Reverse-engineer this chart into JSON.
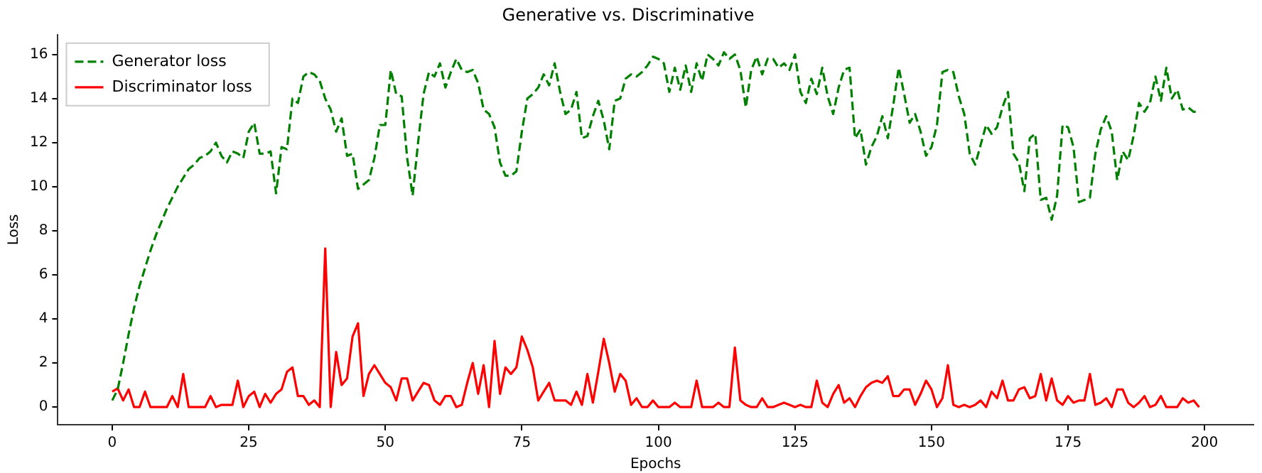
{
  "chart_data": {
    "type": "line",
    "title": "Generative vs. Discriminative",
    "xlabel": "Epochs",
    "ylabel": "Loss",
    "xlim": [
      -9.95,
      208.95
    ],
    "xticks": [
      0,
      25,
      50,
      75,
      100,
      125,
      150,
      175,
      200
    ],
    "ylim": [
      -0.8,
      16.9
    ],
    "yticks": [
      0,
      2,
      4,
      6,
      8,
      10,
      12,
      14,
      16
    ],
    "grid": false,
    "legend": "top left",
    "marker": "none",
    "series": [
      {
        "name": "Generator loss",
        "color": "#008000",
        "line_style": "dashed",
        "values": [
          0.3,
          0.8,
          2,
          3.3,
          4.5,
          5.5,
          6.3,
          7.1,
          7.8,
          8.4,
          9,
          9.5,
          10,
          10.4,
          10.8,
          11,
          11.3,
          11.4,
          11.6,
          12.0,
          11.4,
          11.1,
          11.6,
          11.5,
          11.3,
          12.5,
          12.9,
          11.5,
          11.5,
          11.6,
          9.7,
          11.8,
          11.7,
          14,
          13.8,
          15,
          15.2,
          15.1,
          14.8,
          14,
          13.5,
          12.5,
          13.1,
          11.4,
          11.5,
          9.9,
          10.1,
          10.3,
          11.3,
          12.8,
          12.8,
          15.3,
          14.2,
          14.1,
          11.3,
          9.6,
          12,
          14.2,
          15.2,
          15,
          15.6,
          14.5,
          15.2,
          15.8,
          15.3,
          15.2,
          15.3,
          14.7,
          13.5,
          13.3,
          12.7,
          11.1,
          10.5,
          10.5,
          10.7,
          12.5,
          14,
          14.2,
          14.5,
          15.1,
          14.6,
          15.6,
          14.3,
          13.3,
          13.5,
          14.3,
          12.2,
          12.3,
          13.2,
          13.9,
          13,
          11.7,
          13.9,
          14,
          14.9,
          15.1,
          15,
          15.2,
          15.5,
          15.9,
          15.8,
          15.6,
          14.3,
          15.4,
          14.4,
          15.5,
          14.3,
          15.6,
          14.8,
          16.0,
          15.8,
          15.5,
          16.1,
          15.8,
          16,
          15.3,
          13.6,
          15.3,
          15.9,
          15.1,
          15.8,
          15.8,
          15.4,
          15.6,
          15.3,
          16,
          14.3,
          13.8,
          14.9,
          14.2,
          15.4,
          14.1,
          13.3,
          14.5,
          15.3,
          15.4,
          12.2,
          12.6,
          11,
          11.8,
          12.3,
          13.2,
          12.2,
          13.7,
          15.4,
          14.2,
          12.9,
          13.3,
          12.5,
          11.4,
          11.8,
          12.8,
          15.2,
          15.3,
          15.2,
          14.1,
          13.3,
          11.5,
          11,
          11.9,
          12.8,
          12.4,
          12.7,
          13.6,
          14.3,
          11.5,
          11.1,
          9.8,
          12.2,
          12.4,
          9.4,
          9.5,
          8.5,
          9.6,
          12.8,
          12.7,
          11.8,
          9.3,
          9.4,
          9.5,
          11.5,
          12.6,
          13.2,
          12.5,
          10.3,
          11.6,
          11.2,
          12.3,
          13.8,
          13.4,
          13.8,
          15,
          13.9,
          15.4,
          14,
          14.4,
          13.5,
          13.6,
          13.4,
          13.4
        ]
      },
      {
        "name": "Discriminator loss",
        "color": "#ff0000",
        "line_style": "solid",
        "values": [
          0.7,
          0.85,
          0.3,
          0.8,
          0,
          0,
          0.7,
          0,
          0,
          0,
          0,
          0.5,
          0,
          1.5,
          0,
          0,
          0,
          0,
          0.5,
          0,
          0.1,
          0.1,
          0.1,
          1.2,
          0,
          0.5,
          0.7,
          0,
          0.6,
          0.2,
          0.6,
          0.8,
          1.6,
          1.8,
          0.5,
          0.5,
          0.1,
          0.3,
          0,
          7.2,
          0,
          2.5,
          1,
          1.3,
          3.2,
          3.8,
          0.5,
          1.5,
          1.9,
          1.5,
          1.1,
          0.9,
          0.3,
          1.3,
          1.3,
          0.3,
          0.7,
          1.1,
          1,
          0.3,
          0.1,
          0.5,
          0.5,
          0,
          0.1,
          1.1,
          2,
          0.6,
          1.9,
          0,
          3,
          0.6,
          1.8,
          1.5,
          1.8,
          3.2,
          2.6,
          1.8,
          0.3,
          0.7,
          1.1,
          0.3,
          0.3,
          0.3,
          0.1,
          0.7,
          0.1,
          1.5,
          0.2,
          1.6,
          3.1,
          2,
          0.7,
          1.5,
          1.2,
          0.1,
          0.4,
          0,
          0,
          0.3,
          0,
          0,
          0,
          0.2,
          0,
          0,
          0,
          1.2,
          0,
          0,
          0,
          0.2,
          0,
          0,
          2.7,
          0.3,
          0.1,
          0,
          0,
          0.4,
          0,
          0,
          0.1,
          0.2,
          0.1,
          0,
          0.1,
          0,
          0,
          1.2,
          0.2,
          0,
          0.6,
          1,
          0.2,
          0.4,
          0,
          0.5,
          0.9,
          1.1,
          1.2,
          1.1,
          1.4,
          0.5,
          0.5,
          0.8,
          0.8,
          0.1,
          0.6,
          1.2,
          0.8,
          0,
          0.4,
          1.9,
          0.1,
          0,
          0.1,
          0,
          0.1,
          0.3,
          0,
          0.7,
          0.4,
          1.2,
          0.3,
          0.3,
          0.8,
          0.9,
          0.4,
          0.5,
          1.5,
          0.3,
          1.3,
          0.3,
          0.1,
          0.5,
          0.2,
          0.3,
          0.3,
          1.5,
          0.1,
          0.2,
          0.4,
          0,
          0.8,
          0.8,
          0.2,
          0,
          0.2,
          0.5,
          0,
          0.1,
          0.5,
          0,
          0,
          0,
          0.4,
          0.2,
          0.3,
          0
        ]
      }
    ],
    "x": [
      0,
      1,
      2,
      3,
      4,
      5,
      6,
      7,
      8,
      9,
      10,
      11,
      12,
      13,
      14,
      15,
      16,
      17,
      18,
      19,
      20,
      21,
      22,
      23,
      24,
      25,
      26,
      27,
      28,
      29,
      30,
      31,
      32,
      33,
      34,
      35,
      36,
      37,
      38,
      39,
      40,
      41,
      42,
      43,
      44,
      45,
      46,
      47,
      48,
      49,
      50,
      51,
      52,
      53,
      54,
      55,
      56,
      57,
      58,
      59,
      60,
      61,
      62,
      63,
      64,
      65,
      66,
      67,
      68,
      69,
      70,
      71,
      72,
      73,
      74,
      75,
      76,
      77,
      78,
      79,
      80,
      81,
      82,
      83,
      84,
      85,
      86,
      87,
      88,
      89,
      90,
      91,
      92,
      93,
      94,
      95,
      96,
      97,
      98,
      99,
      100,
      101,
      102,
      103,
      104,
      105,
      106,
      107,
      108,
      109,
      110,
      111,
      112,
      113,
      114,
      115,
      116,
      117,
      118,
      119,
      120,
      121,
      122,
      123,
      124,
      125,
      126,
      127,
      128,
      129,
      130,
      131,
      132,
      133,
      134,
      135,
      136,
      137,
      138,
      139,
      140,
      141,
      142,
      143,
      144,
      145,
      146,
      147,
      148,
      149,
      150,
      151,
      152,
      153,
      154,
      155,
      156,
      157,
      158,
      159,
      160,
      161,
      162,
      163,
      164,
      165,
      166,
      167,
      168,
      169,
      170,
      171,
      172,
      173,
      174,
      175,
      176,
      177,
      178,
      179,
      180,
      181,
      182,
      183,
      184,
      185,
      186,
      187,
      188,
      189,
      190,
      191,
      192,
      193,
      194,
      195,
      196,
      197,
      198,
      199
    ]
  }
}
